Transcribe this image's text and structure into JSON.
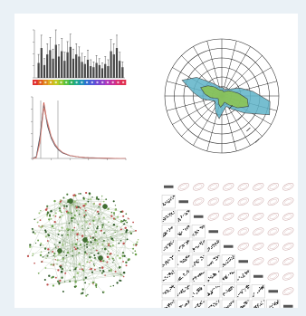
{
  "panels": [
    {
      "name": "bar-chart-panel",
      "description_only": false
    },
    {
      "name": "colorbar-panel",
      "description_only": false
    },
    {
      "name": "density-panel",
      "description_only": false
    },
    {
      "name": "radar-panel",
      "description_only": false
    },
    {
      "name": "network-panel",
      "description_only": false
    },
    {
      "name": "scatter-matrix-panel",
      "description_only": false
    }
  ],
  "chart_data": [
    {
      "type": "bar",
      "categories": [
        "1",
        "2",
        "3",
        "4",
        "5",
        "6",
        "7",
        "8",
        "9",
        "10",
        "11",
        "12",
        "13",
        "14",
        "15",
        "16",
        "17",
        "18",
        "19",
        "20",
        "21",
        "22",
        "23",
        "24",
        "25",
        "26",
        "27",
        "28",
        "29",
        "30"
      ],
      "values": [
        14,
        28,
        12,
        22,
        26,
        18,
        31,
        20,
        25,
        16,
        24,
        29,
        18,
        22,
        20,
        15,
        13,
        17,
        11,
        10,
        14,
        12,
        9,
        13,
        11,
        25,
        22,
        28,
        16,
        10
      ],
      "errors": [
        8,
        12,
        6,
        10,
        12,
        9,
        14,
        11,
        12,
        8,
        10,
        12,
        9,
        10,
        9,
        8,
        7,
        9,
        6,
        5,
        7,
        6,
        5,
        7,
        6,
        11,
        10,
        12,
        8,
        5
      ],
      "ylim": [
        0,
        45
      ]
    },
    {
      "type": "heatmap",
      "colors": [
        "#e03030",
        "#e05a20",
        "#e08a20",
        "#d8b020",
        "#c0c820",
        "#90c830",
        "#58c040",
        "#30b060",
        "#20a890",
        "#2090b8",
        "#3070d0",
        "#5058d8",
        "#7048d0",
        "#9040c8",
        "#b038b8",
        "#c83098",
        "#d83070",
        "#e03050"
      ]
    },
    {
      "type": "line",
      "x": [
        0,
        4,
        8,
        12,
        16,
        20,
        24,
        28,
        32,
        40,
        50,
        60,
        80,
        100
      ],
      "series": [
        {
          "values": [
            0,
            0.02,
            0.35,
            1.0,
            0.62,
            0.38,
            0.24,
            0.16,
            0.1,
            0.05,
            0.025,
            0.012,
            0.004,
            0.0
          ]
        },
        {
          "values": [
            0,
            0.03,
            0.4,
            0.95,
            0.58,
            0.36,
            0.23,
            0.15,
            0.1,
            0.05,
            0.026,
            0.013,
            0.004,
            0.0
          ]
        },
        {
          "values": [
            0,
            0.01,
            0.28,
            0.9,
            0.66,
            0.4,
            0.26,
            0.17,
            0.11,
            0.055,
            0.028,
            0.014,
            0.005,
            0.0
          ]
        }
      ],
      "xlim": [
        0,
        100
      ],
      "ylim": [
        0,
        1.1
      ]
    },
    {
      "type": "radar",
      "rings": 6,
      "spokes": 24,
      "series": [
        {
          "color": "#5fb3c8",
          "values": [
            0.2,
            0.35,
            0.55,
            0.85,
            0.9,
            0.5,
            0.3,
            0.2,
            0.25,
            0.4,
            0.3,
            0.2,
            0.15,
            0.2,
            0.35,
            0.5,
            0.75,
            0.55,
            0.3,
            0.2,
            0.15,
            0.15,
            0.12,
            0.15
          ]
        },
        {
          "color": "#8dc44e",
          "values": [
            0.15,
            0.2,
            0.3,
            0.45,
            0.5,
            0.35,
            0.2,
            0.12,
            0.15,
            0.2,
            0.15,
            0.1,
            0.08,
            0.1,
            0.2,
            0.3,
            0.4,
            0.3,
            0.2,
            0.12,
            0.1,
            0.1,
            0.08,
            0.1
          ]
        }
      ]
    },
    {
      "type": "scatter",
      "description": "network",
      "nodes": 420
    },
    {
      "type": "scatter",
      "description": "matrix",
      "size": 9
    }
  ]
}
